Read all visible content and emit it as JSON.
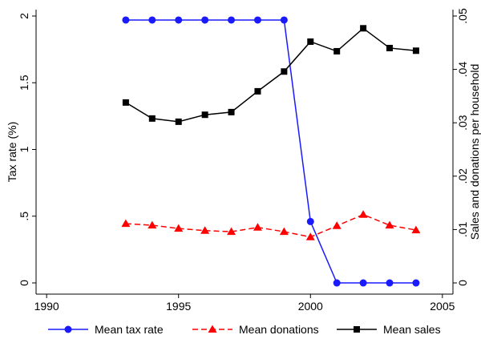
{
  "chart_data": {
    "type": "line",
    "y_label": "Tax rate (%)",
    "y2_label": "Sales and donations per household",
    "x": [
      1993,
      1994,
      1995,
      1996,
      1997,
      1998,
      1999,
      2000,
      2001,
      2002,
      2003,
      2004
    ],
    "series": [
      {
        "name": "Mean tax rate",
        "color": "#1a1aff",
        "marker": "circle",
        "dash": false,
        "axis": "y",
        "values": [
          1.97,
          1.97,
          1.97,
          1.97,
          1.97,
          1.97,
          1.97,
          0.46,
          0,
          0,
          0,
          0
        ]
      },
      {
        "name": "Mean donations",
        "color": "#ff0000",
        "marker": "triangle",
        "dash": true,
        "axis": "y2",
        "values": [
          0.0111,
          0.0108,
          0.0102,
          0.0098,
          0.0096,
          0.0104,
          0.0096,
          0.0086,
          0.0107,
          0.0128,
          0.0108,
          0.0099
        ]
      },
      {
        "name": "Mean sales",
        "color": "#000000",
        "marker": "square",
        "dash": false,
        "axis": "y2",
        "values": [
          0.0338,
          0.0308,
          0.0302,
          0.0315,
          0.032,
          0.0359,
          0.0396,
          0.0452,
          0.0434,
          0.0477,
          0.044,
          0.0435
        ]
      }
    ],
    "xlim": [
      1989.6,
      2005.4
    ],
    "xticks": [
      1990,
      1995,
      2000,
      2005
    ],
    "ylim": [
      -0.084,
      2.048
    ],
    "yticks": [
      0,
      {
        "value": 0.5,
        "label": ".5"
      },
      1,
      1.5,
      2
    ],
    "y2lim": [
      -0.0021,
      0.0512
    ],
    "y2ticks": [
      0,
      {
        "value": 0.01,
        "label": ".01"
      },
      {
        "value": 0.02,
        "label": ".02"
      },
      {
        "value": 0.03,
        "label": ".03"
      },
      {
        "value": 0.04,
        "label": ".04"
      },
      {
        "value": 0.05,
        "label": ".05"
      }
    ],
    "legend": "bottom"
  }
}
